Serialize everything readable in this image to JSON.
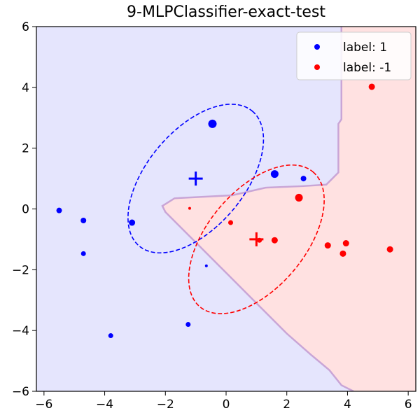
{
  "chart_data": {
    "type": "scatter",
    "title": "9-MLPClassifier-exact-test",
    "xlim": [
      -6.25,
      6.25
    ],
    "ylim": [
      -6,
      6
    ],
    "xticks": [
      -6,
      -4,
      -2,
      0,
      2,
      4,
      6
    ],
    "yticks": [
      -6,
      -4,
      -2,
      0,
      2,
      4,
      6
    ],
    "xtick_labels": [
      "−6",
      "−4",
      "−2",
      "0",
      "2",
      "4",
      "6"
    ],
    "ytick_labels": [
      "−6",
      "−4",
      "−2",
      "0",
      "2",
      "4",
      "6"
    ],
    "grid": false,
    "legend_position": "top-right",
    "colors": {
      "class_1": "#0000ff",
      "class_neg1": "#ff0000",
      "region_1": "#e5e5fd",
      "region_neg1": "#ffe1e1",
      "boundary": "#c9a5d6"
    },
    "series": [
      {
        "name": "label: 1",
        "color": "#0000ff",
        "points": [
          {
            "x": -0.45,
            "y": 2.8,
            "s": 6
          },
          {
            "x": 1.6,
            "y": 1.15,
            "s": 5.5
          },
          {
            "x": 2.55,
            "y": 1.0,
            "s": 4
          },
          {
            "x": -5.5,
            "y": -0.05,
            "s": 4
          },
          {
            "x": -4.7,
            "y": -0.38,
            "s": 4
          },
          {
            "x": -3.1,
            "y": -0.45,
            "s": 4.5
          },
          {
            "x": -4.7,
            "y": -1.47,
            "s": 3.5
          },
          {
            "x": -0.65,
            "y": -1.87,
            "s": 2
          },
          {
            "x": -1.25,
            "y": -3.8,
            "s": 3.5
          },
          {
            "x": -3.8,
            "y": -4.17,
            "s": 3.5
          }
        ],
        "mean": {
          "x": -1.0,
          "y": 1.0
        },
        "ellipse": {
          "cx": -1.0,
          "cy": 1.0,
          "angle_deg": 50,
          "semi_major": 2.9,
          "semi_minor": 1.6
        }
      },
      {
        "name": "label: -1",
        "color": "#ff0000",
        "points": [
          {
            "x": 4.8,
            "y": 4.02,
            "s": 4.5
          },
          {
            "x": 2.4,
            "y": 0.37,
            "s": 5.5
          },
          {
            "x": -1.2,
            "y": 0.02,
            "s": 2
          },
          {
            "x": 0.15,
            "y": -0.45,
            "s": 3.5
          },
          {
            "x": 1.6,
            "y": -1.03,
            "s": 4.5
          },
          {
            "x": 1.1,
            "y": -1.03,
            "s": 3.5
          },
          {
            "x": 3.35,
            "y": -1.2,
            "s": 4.5
          },
          {
            "x": 3.95,
            "y": -1.13,
            "s": 4.5
          },
          {
            "x": 3.85,
            "y": -1.47,
            "s": 4.5
          },
          {
            "x": 5.4,
            "y": -1.33,
            "s": 4.5
          }
        ],
        "mean": {
          "x": 1.0,
          "y": -1.0
        },
        "ellipse": {
          "cx": 1.0,
          "cy": -1.0,
          "angle_deg": 50,
          "semi_major": 2.9,
          "semi_minor": 1.6
        }
      }
    ],
    "decision_boundary": [
      [
        3.8,
        6
      ],
      [
        3.8,
        2.95
      ],
      [
        3.7,
        2.8
      ],
      [
        3.7,
        1.2
      ],
      [
        3.5,
        1.0
      ],
      [
        3.3,
        0.8
      ],
      [
        2.5,
        0.75
      ],
      [
        1.3,
        0.7
      ],
      [
        0.2,
        0.45
      ],
      [
        -1.7,
        0.35
      ],
      [
        -2.1,
        0.1
      ],
      [
        -2.0,
        -0.1
      ],
      [
        -1.0,
        -1.1
      ],
      [
        0.0,
        -2.1
      ],
      [
        1.0,
        -3.1
      ],
      [
        2.0,
        -4.1
      ],
      [
        2.8,
        -4.8
      ],
      [
        3.4,
        -5.3
      ],
      [
        3.8,
        -5.8
      ],
      [
        4.2,
        -6.0
      ]
    ]
  }
}
